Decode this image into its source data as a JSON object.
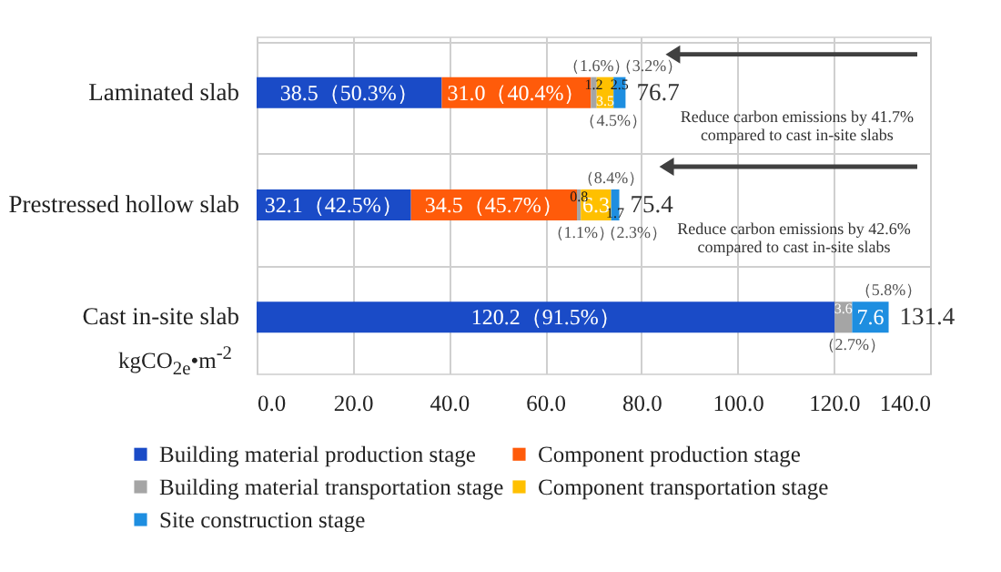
{
  "chart_data": {
    "type": "bar",
    "orientation": "horizontal",
    "stacked": true,
    "categories": [
      "Laminated slab",
      "Prestressed hollow slab",
      "Cast in-site slab"
    ],
    "series": [
      {
        "name": "Building material production stage",
        "color": "#1a4bc7",
        "values": [
          38.5,
          32.1,
          120.2
        ],
        "value_labels": [
          "38.5（50.3%）",
          "32.1（42.5%）",
          "120.2（91.5%）"
        ]
      },
      {
        "name": "Component production stage",
        "color": "#ff5b0a",
        "values": [
          31.0,
          34.5,
          null
        ],
        "value_labels": [
          "31.0（40.4%）",
          "34.5（45.7%）",
          null
        ]
      },
      {
        "name": "Building material transportation stage",
        "color": "#a5a5a5",
        "values": [
          1.2,
          0.8,
          3.6
        ],
        "value_labels": [
          "1.2",
          "0.8",
          "3.6"
        ]
      },
      {
        "name": "Component transportation stage",
        "color": "#ffc000",
        "values": [
          3.5,
          6.3,
          null
        ],
        "value_labels": [
          "3.5",
          "6.3",
          null
        ]
      },
      {
        "name": "Site construction stage",
        "color": "#1e8ee0",
        "values": [
          2.5,
          1.7,
          7.6
        ],
        "value_labels": [
          "2.5",
          "1.7",
          "7.6"
        ]
      }
    ],
    "totals": [
      "76.7",
      "75.4",
      "131.4"
    ],
    "xlabel": "kgCO$_{2e}$•m$^{-2}$",
    "xlim": [
      0,
      140
    ],
    "xticks": [
      {
        "value": 0,
        "label": "0.0"
      },
      {
        "value": 20,
        "label": "20.0"
      },
      {
        "value": 40,
        "label": "40.0"
      },
      {
        "value": 60,
        "label": "60.0"
      },
      {
        "value": 80,
        "label": "80.0"
      },
      {
        "value": 100,
        "label": "100.0"
      },
      {
        "value": 120,
        "label": "120.0"
      },
      {
        "value": 140,
        "label": "140.0"
      }
    ],
    "grid": true,
    "legend": "bottom",
    "annotations": [
      {
        "text": "（1.6%）",
        "x": 70.7,
        "y": "Laminated slab"
      },
      {
        "text": "（3.2%）",
        "x": 76.7,
        "y": "Laminated slab"
      },
      {
        "text": "（4.5%）",
        "x": 74.2,
        "y": "Laminated slab"
      },
      {
        "text": "（8.4%）",
        "x": 73.7,
        "y": "Prestressed hollow slab"
      },
      {
        "text": "（1.1%）",
        "x": 67.4,
        "y": "Prestressed hollow slab"
      },
      {
        "text": "（2.3%）",
        "x": 75.4,
        "y": "Prestressed hollow slab"
      },
      {
        "text": "（5.8%）",
        "x": 131.4,
        "y": "Cast in-site slab"
      },
      {
        "text": "（2.7%）",
        "x": 123.8,
        "y": "Cast in-site slab"
      },
      "Reduce carbon emissions by 41.7% compared to cast in-site slabs",
      "Reduce carbon emissions by 42.6% compared to cast in-site slabs"
    ]
  }
}
